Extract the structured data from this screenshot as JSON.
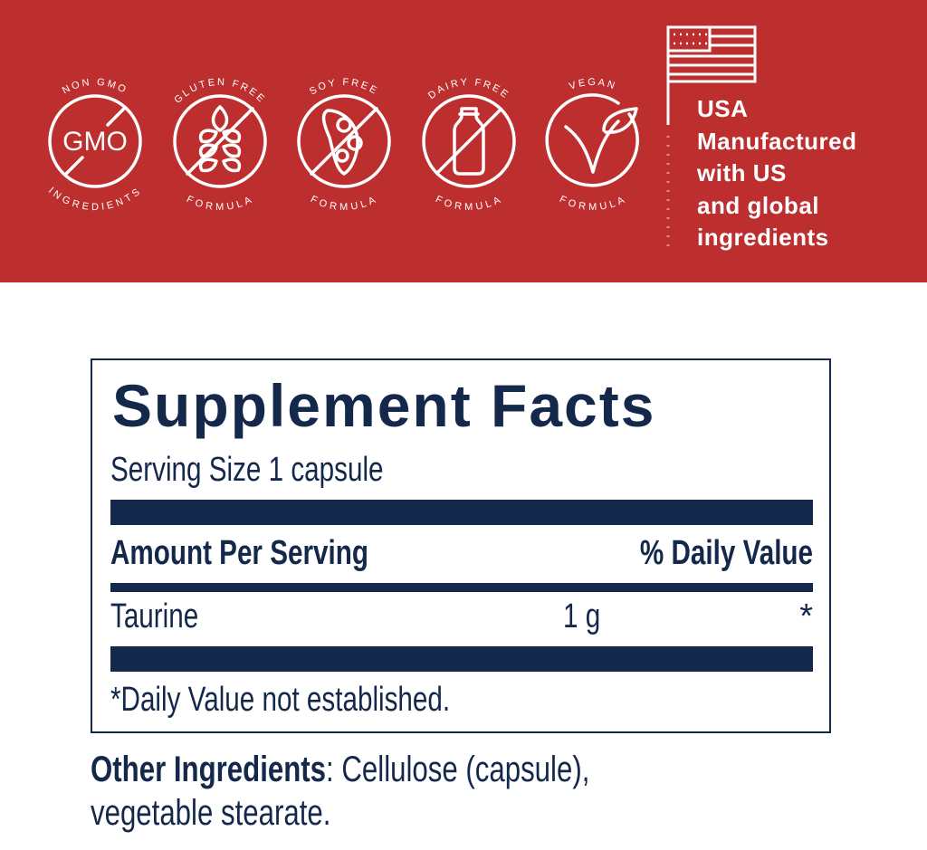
{
  "banner": {
    "background": "#bd2f2f",
    "badges": [
      {
        "top": "NON GMO",
        "bottom": "INGREDIENTS",
        "center": "GMO",
        "icon": "non-gmo-icon"
      },
      {
        "top": "GLUTEN FREE",
        "bottom": "FORMULA",
        "icon": "wheat-crossed-icon"
      },
      {
        "top": "SOY FREE",
        "bottom": "FORMULA",
        "icon": "soybean-crossed-icon"
      },
      {
        "top": "DAIRY FREE",
        "bottom": "FORMULA",
        "icon": "milk-bottle-crossed-icon"
      },
      {
        "top": "VEGAN",
        "bottom": "FORMULA",
        "icon": "vegan-leaf-icon"
      }
    ],
    "usa_lines": [
      "USA",
      "Manufactured",
      "with US",
      "and global",
      "ingredients"
    ],
    "flag_icon": "usa-flag-icon"
  },
  "facts": {
    "title": "Supplement Facts",
    "serving_size": "Serving Size 1 capsule",
    "amount_header": "Amount Per Serving",
    "dv_header": "% Daily Value",
    "rows": [
      {
        "name": "Taurine",
        "amount": "1 g",
        "dv": "*"
      }
    ],
    "footnote": "*Daily Value not established.",
    "color": "#14284b"
  },
  "other_ingredients": {
    "label": "Other Ingredients",
    "text": ": Cellulose (capsule), vegetable stearate."
  }
}
